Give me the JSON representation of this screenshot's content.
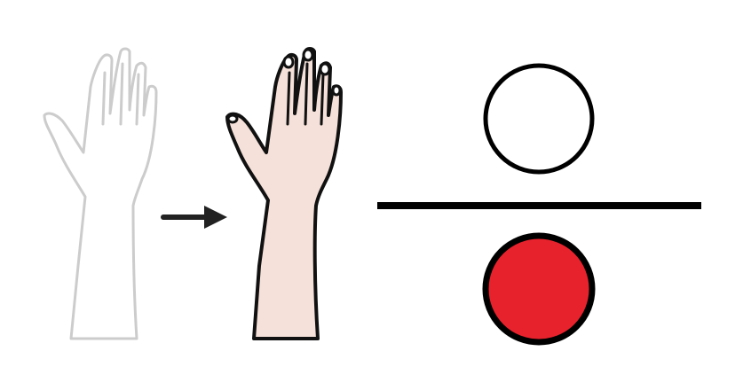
{
  "pictogram": {
    "background": "#ffffff",
    "colors": {
      "ghost_hand_outline": "#cccccc",
      "ghost_hand_fill": "#ffffff",
      "hand_outline": "#111111",
      "hand_fill": "#f5e1d9",
      "arrow": "#222222",
      "divider": "#000000",
      "top_circle_fill": "#ffffff",
      "bottom_circle_fill": "#e8222c",
      "circle_outline": "#000000"
    },
    "icons": {
      "before": "raised-hand-faded-icon",
      "transition": "arrow-right-icon",
      "after": "raised-hand-icon",
      "top": "empty-circle-icon",
      "bottom": "red-filled-circle-icon"
    }
  }
}
